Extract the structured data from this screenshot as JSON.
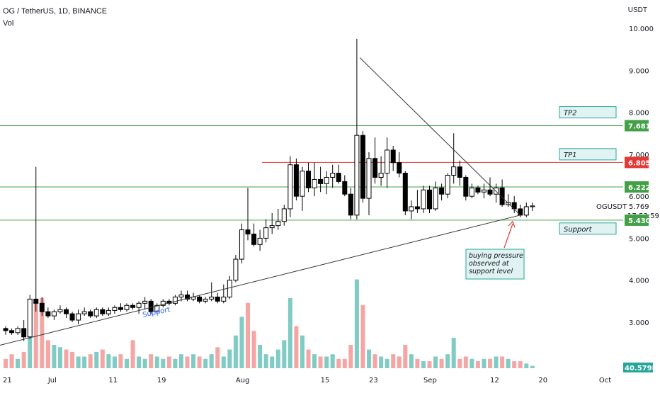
{
  "header": {
    "title": "OG / TetherUS, 1D, BINANCE",
    "volume_label": "Vol",
    "unit": "USDT"
  },
  "y_ticks": [
    "10.000",
    "9.000",
    "8.000",
    "7.000",
    "6.000",
    "5.000",
    "4.000",
    "3.000"
  ],
  "x_ticks": [
    {
      "label": "21",
      "t": -3
    },
    {
      "label": "Jul",
      "t": 7
    },
    {
      "label": "11",
      "t": 17
    },
    {
      "label": "19",
      "t": 25
    },
    {
      "label": "Aug",
      "t": 38
    },
    {
      "label": "15",
      "t": 52
    },
    {
      "label": "23",
      "t": 60
    },
    {
      "label": "Sep",
      "t": 69
    },
    {
      "label": "12",
      "t": 80
    },
    {
      "label": "20",
      "t": 88
    },
    {
      "label": "Oct",
      "t": 98
    }
  ],
  "levels": [
    {
      "price": 7.681,
      "label": "7.681",
      "color": "#43a047"
    },
    {
      "price": 6.805,
      "label": "6.805",
      "color": "#e53935"
    },
    {
      "price": 6.222,
      "label": "6.222",
      "color": "#43a047"
    },
    {
      "price": 5.43,
      "label": "5.430",
      "color": "#43a047"
    }
  ],
  "boxes": [
    {
      "text": "TP2",
      "price": 8.0
    },
    {
      "text": "TP1",
      "price": 7.0
    },
    {
      "text": "Support",
      "price": 5.23
    }
  ],
  "current": {
    "symbol": "OGUSDT",
    "price": "5.769",
    "countdown": "17:53:59"
  },
  "volume_tag": "40.579K",
  "annotations": {
    "support_label": "Support",
    "note_lines": [
      "buying pressure",
      "observed at",
      "support level"
    ]
  },
  "colors": {
    "up": "#26a69a",
    "down": "#ef5350",
    "vol_up": "#80cbc4",
    "vol_down": "#f4a6a4",
    "candle_up": "#ffffff",
    "candle_down": "#000000"
  },
  "chart_data": {
    "type": "candlestick",
    "title": "OG / TetherUS, 1D, BINANCE",
    "ylim": [
      2.4,
      10.5
    ],
    "x_start": "2022-06-18",
    "ohlc": [
      [
        2.85,
        2.9,
        2.7,
        2.8
      ],
      [
        2.8,
        2.85,
        2.7,
        2.75
      ],
      [
        2.75,
        2.9,
        2.7,
        2.85
      ],
      [
        2.85,
        3.05,
        2.55,
        2.65
      ],
      [
        2.65,
        3.65,
        2.6,
        3.55
      ],
      [
        3.55,
        6.7,
        3.25,
        3.45
      ],
      [
        3.45,
        3.6,
        3.15,
        3.25
      ],
      [
        3.25,
        3.35,
        3.1,
        3.15
      ],
      [
        3.15,
        3.3,
        3.05,
        3.25
      ],
      [
        3.25,
        3.4,
        3.2,
        3.3
      ],
      [
        3.3,
        3.35,
        3.1,
        3.2
      ],
      [
        3.2,
        3.25,
        3.0,
        3.05
      ],
      [
        3.05,
        3.3,
        2.95,
        3.2
      ],
      [
        3.2,
        3.35,
        3.15,
        3.25
      ],
      [
        3.25,
        3.3,
        3.1,
        3.15
      ],
      [
        3.15,
        3.35,
        3.1,
        3.3
      ],
      [
        3.3,
        3.35,
        3.15,
        3.2
      ],
      [
        3.2,
        3.35,
        3.15,
        3.28
      ],
      [
        3.28,
        3.4,
        3.2,
        3.35
      ],
      [
        3.35,
        3.45,
        3.25,
        3.3
      ],
      [
        3.3,
        3.45,
        3.25,
        3.4
      ],
      [
        3.4,
        3.45,
        3.3,
        3.35
      ],
      [
        3.35,
        3.5,
        3.2,
        3.45
      ],
      [
        3.45,
        3.6,
        3.3,
        3.5
      ],
      [
        3.5,
        3.55,
        3.2,
        3.25
      ],
      [
        3.25,
        3.45,
        3.2,
        3.4
      ],
      [
        3.4,
        3.55,
        3.35,
        3.5
      ],
      [
        3.5,
        3.55,
        3.4,
        3.45
      ],
      [
        3.45,
        3.65,
        3.4,
        3.6
      ],
      [
        3.6,
        3.75,
        3.5,
        3.65
      ],
      [
        3.65,
        3.75,
        3.5,
        3.55
      ],
      [
        3.55,
        3.7,
        3.5,
        3.6
      ],
      [
        3.6,
        3.65,
        3.45,
        3.5
      ],
      [
        3.5,
        3.6,
        3.45,
        3.55
      ],
      [
        3.55,
        3.95,
        3.5,
        3.6
      ],
      [
        3.6,
        3.7,
        3.45,
        3.5
      ],
      [
        3.5,
        3.9,
        3.45,
        3.6
      ],
      [
        3.6,
        4.1,
        3.55,
        4.0
      ],
      [
        4.0,
        4.6,
        3.95,
        4.5
      ],
      [
        4.5,
        5.35,
        4.4,
        5.2
      ],
      [
        5.2,
        6.2,
        4.95,
        5.1
      ],
      [
        5.1,
        5.35,
        4.8,
        4.85
      ],
      [
        4.85,
        5.2,
        4.7,
        5.0
      ],
      [
        5.0,
        5.45,
        4.9,
        5.25
      ],
      [
        5.25,
        5.6,
        5.1,
        5.3
      ],
      [
        5.3,
        5.7,
        5.2,
        5.4
      ],
      [
        5.4,
        5.8,
        5.3,
        5.7
      ],
      [
        5.7,
        6.95,
        5.5,
        6.75
      ],
      [
        6.75,
        6.9,
        5.9,
        6.0
      ],
      [
        6.0,
        6.7,
        5.65,
        6.6
      ],
      [
        6.6,
        6.8,
        6.1,
        6.2
      ],
      [
        6.2,
        6.8,
        6.0,
        6.4
      ],
      [
        6.4,
        6.7,
        6.1,
        6.3
      ],
      [
        6.3,
        6.6,
        6.05,
        6.45
      ],
      [
        6.45,
        6.75,
        6.2,
        6.55
      ],
      [
        6.55,
        6.75,
        6.3,
        6.35
      ],
      [
        6.35,
        6.5,
        6.0,
        6.05
      ],
      [
        6.05,
        6.2,
        5.45,
        5.55
      ],
      [
        5.55,
        9.75,
        5.45,
        7.45
      ],
      [
        7.45,
        7.55,
        5.85,
        5.95
      ],
      [
        5.95,
        7.05,
        5.55,
        6.9
      ],
      [
        6.9,
        7.4,
        6.3,
        6.45
      ],
      [
        6.45,
        6.95,
        6.25,
        6.55
      ],
      [
        6.55,
        7.4,
        6.2,
        7.1
      ],
      [
        7.1,
        7.2,
        6.6,
        6.8
      ],
      [
        6.8,
        7.05,
        6.45,
        6.55
      ],
      [
        6.55,
        6.6,
        5.55,
        5.65
      ],
      [
        5.65,
        5.9,
        5.45,
        5.75
      ],
      [
        5.75,
        6.15,
        5.6,
        5.7
      ],
      [
        5.7,
        6.25,
        5.6,
        6.15
      ],
      [
        6.15,
        6.25,
        5.6,
        5.7
      ],
      [
        5.7,
        6.35,
        5.65,
        6.2
      ],
      [
        6.2,
        6.3,
        5.9,
        6.05
      ],
      [
        6.05,
        6.55,
        5.95,
        6.5
      ],
      [
        6.5,
        7.5,
        6.3,
        6.7
      ],
      [
        6.7,
        6.85,
        6.25,
        6.45
      ],
      [
        6.45,
        6.5,
        5.9,
        6.0
      ],
      [
        6.0,
        6.3,
        5.95,
        6.2
      ],
      [
        6.2,
        6.25,
        6.05,
        6.1
      ],
      [
        6.1,
        6.3,
        5.95,
        6.15
      ],
      [
        6.15,
        6.45,
        6.0,
        6.05
      ],
      [
        6.05,
        6.3,
        5.85,
        6.2
      ],
      [
        6.2,
        6.4,
        5.75,
        5.8
      ],
      [
        5.8,
        6.05,
        5.75,
        5.85
      ],
      [
        5.85,
        6.0,
        5.6,
        5.7
      ],
      [
        5.7,
        5.8,
        5.5,
        5.55
      ],
      [
        5.55,
        5.85,
        5.5,
        5.75
      ],
      [
        5.75,
        5.85,
        5.65,
        5.77
      ]
    ],
    "volume": [
      4,
      6,
      4,
      7,
      15,
      28,
      30,
      12,
      10,
      9,
      8,
      7,
      5,
      5,
      6,
      7,
      8,
      6,
      5,
      6,
      4,
      12,
      5,
      4,
      6,
      5,
      4,
      5,
      4,
      6,
      5,
      6,
      5,
      4,
      6,
      9,
      5,
      8,
      14,
      22,
      28,
      16,
      10,
      6,
      5,
      8,
      12,
      30,
      18,
      14,
      8,
      6,
      5,
      5,
      6,
      4,
      4,
      10,
      38,
      27,
      8,
      6,
      5,
      4,
      6,
      5,
      10,
      6,
      4,
      3,
      3,
      5,
      4,
      6,
      13,
      4,
      5,
      4,
      3,
      4,
      4,
      5,
      5,
      4,
      3,
      3,
      2,
      1
    ],
    "trendlines": [
      {
        "name": "ascending support",
        "from": {
          "t": -1,
          "price": 2.45
        },
        "to": {
          "t": 85,
          "price": 5.55
        }
      },
      {
        "name": "descending resistance",
        "from": {
          "t": 58.5,
          "price": 9.3
        },
        "to": {
          "t": 85,
          "price": 5.55
        }
      }
    ]
  }
}
